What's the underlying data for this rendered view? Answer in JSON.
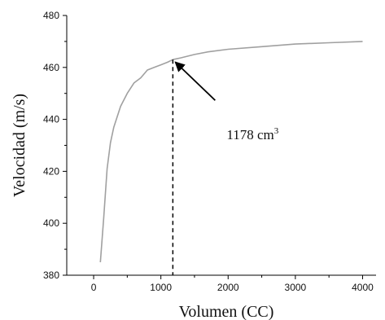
{
  "chart_data": {
    "type": "line",
    "title": "",
    "xlabel": "Volumen (CC)",
    "ylabel": "Velocidad (m/s)",
    "xlim": [
      -400,
      4200
    ],
    "ylim": [
      380,
      480
    ],
    "xticks": [
      0,
      1000,
      2000,
      3000,
      4000
    ],
    "yticks": [
      380,
      400,
      420,
      440,
      460,
      480
    ],
    "grid": false,
    "line_color": "#a0a0a0",
    "series": [
      {
        "x": [
          100,
          150,
          200,
          250,
          300,
          400,
          500,
          600,
          700,
          800,
          900,
          1000,
          1100,
          1178,
          1300,
          1500,
          1700,
          2000,
          2500,
          3000,
          3500,
          4000
        ],
        "y": [
          385,
          402,
          421,
          431,
          437,
          445,
          450,
          454,
          456,
          459,
          460,
          461,
          462,
          463,
          463.7,
          465,
          466,
          467,
          468,
          469,
          469.5,
          470
        ]
      }
    ],
    "annotations": [
      {
        "text": "1178 cm",
        "superscript": "3",
        "point": {
          "x": 1178,
          "y": 463
        },
        "dashed_drop_line": true
      }
    ]
  }
}
